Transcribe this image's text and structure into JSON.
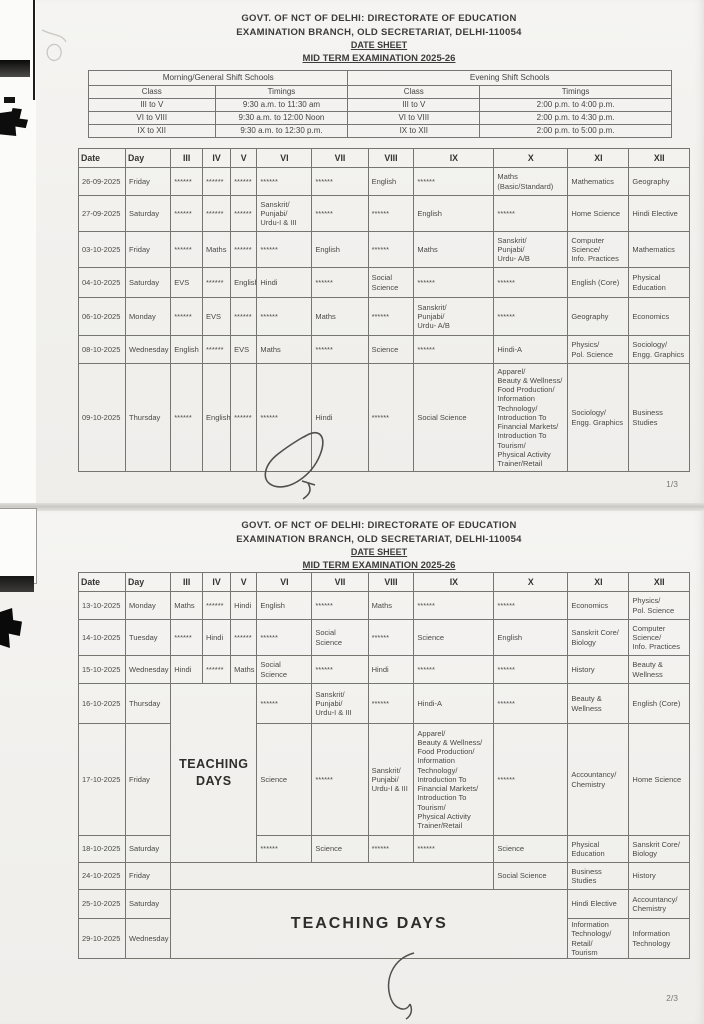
{
  "letterhead": {
    "line1": "GOVT. OF NCT OF DELHI: DIRECTORATE OF EDUCATION",
    "line2": "EXAMINATION BRANCH, OLD SECRETARIAT, DELHI-110054",
    "line3": "DATE SHEET",
    "line4": "MID TERM EXAMINATION 2025-26"
  },
  "shift_table": {
    "sections": [
      {
        "title": "Morning/General Shift Schools",
        "class_header": "Class",
        "timings_header": "Timings",
        "rows": [
          [
            "III to V",
            "9:30 a.m. to 11:30 am"
          ],
          [
            "VI to VIII",
            "9:30 a.m. to 12:00 Noon"
          ],
          [
            "IX to XII",
            "9:30 a.m. to 12:30 p.m."
          ]
        ]
      },
      {
        "title": "Evening Shift Schools",
        "class_header": "Class",
        "timings_header": "Timings",
        "rows": [
          [
            "III to V",
            "2:00 p.m. to 4:00 p.m."
          ],
          [
            "VI to VIII",
            "2:00 p.m. to 4:30 p.m."
          ],
          [
            "IX to XII",
            "2:00 p.m. to 5:00 p.m."
          ]
        ]
      }
    ]
  },
  "exam_columns": [
    "Date",
    "Day",
    "III",
    "IV",
    "V",
    "VI",
    "VII",
    "VIII",
    "IX",
    "X",
    "XI",
    "XII"
  ],
  "page1": {
    "page_number": "1/3",
    "rows": [
      {
        "date": "26-09-2025",
        "day": "Friday",
        "cells": [
          "******",
          "******",
          "******",
          "******",
          "******",
          "English",
          "******",
          "Maths\n(Basic/Standard)",
          "Mathematics",
          "Geography"
        ]
      },
      {
        "date": "27-09-2025",
        "day": "Saturday",
        "cells": [
          "******",
          "******",
          "******",
          "Sanskrit/\nPunjabi/\nUrdu-I & III",
          "******",
          "******",
          "English",
          "******",
          "Home Science",
          "Hindi Elective"
        ]
      },
      {
        "date": "03-10-2025",
        "day": "Friday",
        "cells": [
          "******",
          "Maths",
          "******",
          "******",
          "English",
          "******",
          "Maths",
          "Sanskrit/\nPunjabi/\nUrdu- A/B",
          "Computer\nScience/\nInfo. Practices",
          "Mathematics"
        ]
      },
      {
        "date": "04-10-2025",
        "day": "Saturday",
        "cells": [
          "EVS",
          "******",
          "English",
          "Hindi",
          "******",
          "Social\nScience",
          "******",
          "******",
          "English (Core)",
          "Physical\nEducation"
        ]
      },
      {
        "date": "06-10-2025",
        "day": "Monday",
        "cells": [
          "******",
          "EVS",
          "******",
          "******",
          "Maths",
          "******",
          "Sanskrit/\nPunjabi/\nUrdu- A/B",
          "******",
          "Geography",
          "Economics"
        ]
      },
      {
        "date": "08-10-2025",
        "day": "Wednesday",
        "cells": [
          "English",
          "******",
          "EVS",
          "Maths",
          "******",
          "Science",
          "******",
          "Hindi-A",
          "Physics/\nPol. Science",
          "Sociology/\nEngg. Graphics"
        ]
      },
      {
        "date": "09-10-2025",
        "day": "Thursday",
        "cells": [
          "******",
          "English",
          "******",
          "******",
          "Hindi",
          "******",
          "Social Science",
          "Apparel/\nBeauty & Wellness/\nFood Production/\nInformation\nTechnology/\nIntroduction To\nFinancial Markets/\nIntroduction To\nTourism/\nPhysical Activity\nTrainer/Retail",
          "Sociology/\nEngg. Graphics",
          "Business\nStudies"
        ]
      }
    ]
  },
  "page2": {
    "page_number": "2/3",
    "rows": [
      {
        "date": "13-10-2025",
        "day": "Monday",
        "cells": [
          "Maths",
          "******",
          "Hindi",
          "English",
          "******",
          "Maths",
          "******",
          "******",
          "Economics",
          "Physics/\nPol. Science"
        ]
      },
      {
        "date": "14-10-2025",
        "day": "Tuesday",
        "cells": [
          "******",
          "Hindi",
          "******",
          "******",
          "Social\nScience",
          "******",
          "Science",
          "English",
          "Sanskrit Core/\nBiology",
          "Computer\nScience/\nInfo. Practices"
        ]
      },
      {
        "date": "15-10-2025",
        "day": "Wednesday",
        "cells": [
          "Hindi",
          "******",
          "Maths",
          "Social\nScience",
          "******",
          "Hindi",
          "******",
          "******",
          "History",
          "Beauty &\nWellness"
        ]
      },
      {
        "date": "16-10-2025",
        "day": "Thursday",
        "cells": [
          {
            "t": "TEACHING\nDAYS",
            "cs": 3,
            "rs": 3,
            "style": "teaching-small"
          },
          "******",
          "Sanskrit/\nPunjabi/\nUrdu-I & III",
          "******",
          "Hindi-A",
          "******",
          "Beauty &\nWellness",
          "English (Core)"
        ]
      },
      {
        "date": "17-10-2025",
        "day": "Friday",
        "cells": [
          "Science",
          "******",
          "Sanskrit/\nPunjabi/\nUrdu-I & III",
          "Apparel/\nBeauty & Wellness/\nFood Production/\nInformation\nTechnology/\nIntroduction To\nFinancial Markets/\nIntroduction To\nTourism/\nPhysical Activity\nTrainer/Retail",
          "******",
          "Accountancy/\nChemistry",
          "Home Science"
        ]
      },
      {
        "date": "18-10-2025",
        "day": "Saturday",
        "cells": [
          "******",
          "Science",
          "******",
          "******",
          "Science",
          "Physical\nEducation",
          "Sanskrit Core/\nBiology"
        ]
      },
      {
        "date": "24-10-2025",
        "day": "Friday",
        "cells": [
          {
            "t": "",
            "cs": 7
          },
          "Social Science",
          "Business\nStudies",
          "History"
        ]
      },
      {
        "date": "25-10-2025",
        "day": "Saturday",
        "cells": [
          {
            "t": "TEACHING DAYS",
            "cs": 8,
            "rs": 2,
            "style": "teaching-big"
          },
          "Hindi Elective",
          "Accountancy/\nChemistry"
        ]
      },
      {
        "date": "29-10-2025",
        "day": "Wednesday",
        "cells": [
          "Information\nTechnology/\nRetail/\nTourism",
          "Information\nTechnology"
        ]
      }
    ]
  }
}
